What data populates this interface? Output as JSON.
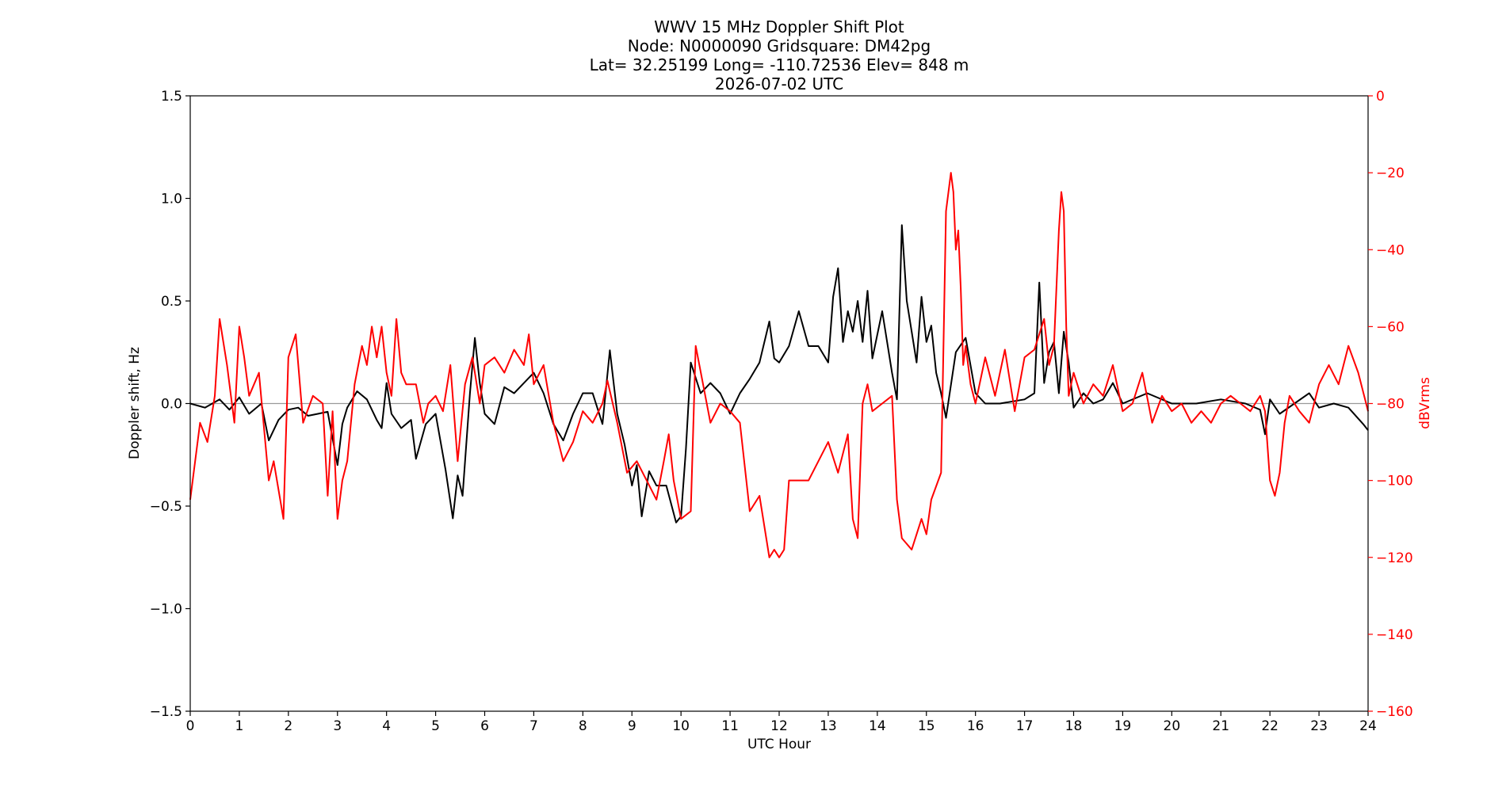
{
  "chart_data": {
    "type": "line",
    "title_lines": [
      "WWV 15 MHz Doppler Shift Plot",
      "Node:  N0000090     Gridsquare:  DM42pg",
      "Lat= 32.25199    Long= -110.72536    Elev= 848 m",
      "2026-07-02  UTC"
    ],
    "xlabel": "UTC Hour",
    "ylabel_left": "Doppler shift, Hz",
    "ylabel_right": "dBVrms",
    "xlim": [
      0,
      24
    ],
    "ylim_left": [
      -1.5,
      1.5
    ],
    "ylim_right": [
      -160,
      0
    ],
    "x_ticks": [
      "0",
      "1",
      "2",
      "3",
      "4",
      "5",
      "6",
      "7",
      "8",
      "9",
      "10",
      "11",
      "12",
      "13",
      "14",
      "15",
      "16",
      "17",
      "18",
      "19",
      "20",
      "21",
      "22",
      "23",
      "24"
    ],
    "y_ticks_left": [
      "−1.5",
      "−1.0",
      "−0.5",
      "0.0",
      "0.5",
      "1.0",
      "1.5"
    ],
    "y_ticks_left_values": [
      -1.5,
      -1.0,
      -0.5,
      0.0,
      0.5,
      1.0,
      1.5
    ],
    "y_ticks_right": [
      "−160",
      "−140",
      "−120",
      "−100",
      "−80",
      "−60",
      "−40",
      "−20",
      "0"
    ],
    "y_ticks_right_values": [
      -160,
      -140,
      -120,
      -100,
      -80,
      -60,
      -40,
      -20,
      0
    ],
    "colors": {
      "doppler": "#000000",
      "power": "#ff0000",
      "zero_line": "#999999",
      "right_axis": "#ff0000"
    },
    "zero_line_y": 0.0,
    "series": [
      {
        "axis": "left",
        "x": [
          0,
          0.3,
          0.6,
          0.8,
          1.0,
          1.2,
          1.45,
          1.6,
          1.8,
          2.0,
          2.2,
          2.4,
          2.6,
          2.8,
          3.0,
          3.1,
          3.2,
          3.4,
          3.6,
          3.8,
          3.9,
          4.0,
          4.1,
          4.3,
          4.5,
          4.6,
          4.8,
          5.0,
          5.2,
          5.35,
          5.45,
          5.55,
          5.7,
          5.8,
          5.9,
          6.0,
          6.2,
          6.4,
          6.6,
          6.8,
          7.0,
          7.2,
          7.4,
          7.6,
          7.8,
          8.0,
          8.2,
          8.4,
          8.55,
          8.7,
          8.85,
          9.0,
          9.1,
          9.2,
          9.35,
          9.5,
          9.7,
          9.9,
          10.0,
          10.1,
          10.2,
          10.4,
          10.6,
          10.8,
          11.0,
          11.2,
          11.4,
          11.6,
          11.8,
          11.9,
          12.0,
          12.2,
          12.4,
          12.6,
          12.8,
          13.0,
          13.1,
          13.2,
          13.3,
          13.4,
          13.5,
          13.6,
          13.7,
          13.8,
          13.9,
          14.1,
          14.3,
          14.4,
          14.5,
          14.6,
          14.7,
          14.8,
          14.9,
          15.0,
          15.1,
          15.2,
          15.3,
          15.4,
          15.6,
          15.8,
          16.0,
          16.2,
          16.5,
          17.0,
          17.2,
          17.3,
          17.4,
          17.5,
          17.6,
          17.7,
          17.8,
          17.9,
          18.0,
          18.2,
          18.4,
          18.6,
          18.8,
          19.0,
          19.5,
          20.0,
          20.5,
          21.0,
          21.5,
          21.8,
          21.9,
          22.0,
          22.2,
          22.5,
          22.8,
          23.0,
          23.3,
          23.6,
          23.9,
          24.0
        ],
        "y": [
          0.0,
          -0.02,
          0.02,
          -0.03,
          0.03,
          -0.05,
          0.0,
          -0.18,
          -0.08,
          -0.03,
          -0.02,
          -0.06,
          -0.05,
          -0.04,
          -0.3,
          -0.1,
          -0.02,
          0.06,
          0.02,
          -0.08,
          -0.12,
          0.1,
          -0.05,
          -0.12,
          -0.08,
          -0.27,
          -0.1,
          -0.05,
          -0.32,
          -0.56,
          -0.35,
          -0.45,
          0.05,
          0.32,
          0.1,
          -0.05,
          -0.1,
          0.08,
          0.05,
          0.1,
          0.15,
          0.05,
          -0.1,
          -0.18,
          -0.05,
          0.05,
          0.05,
          -0.1,
          0.26,
          -0.05,
          -0.2,
          -0.4,
          -0.3,
          -0.55,
          -0.33,
          -0.4,
          -0.4,
          -0.58,
          -0.55,
          -0.22,
          0.2,
          0.05,
          0.1,
          0.05,
          -0.05,
          0.05,
          0.12,
          0.2,
          0.4,
          0.22,
          0.2,
          0.28,
          0.45,
          0.28,
          0.28,
          0.2,
          0.52,
          0.66,
          0.3,
          0.45,
          0.35,
          0.5,
          0.3,
          0.55,
          0.22,
          0.45,
          0.15,
          0.02,
          0.87,
          0.5,
          0.35,
          0.2,
          0.52,
          0.3,
          0.38,
          0.15,
          0.05,
          -0.07,
          0.25,
          0.32,
          0.05,
          0.0,
          0.0,
          0.02,
          0.05,
          0.59,
          0.1,
          0.25,
          0.3,
          0.05,
          0.35,
          0.2,
          -0.02,
          0.05,
          0.0,
          0.02,
          0.1,
          0.0,
          0.05,
          0.0,
          0.0,
          0.02,
          0.0,
          -0.03,
          -0.15,
          0.02,
          -0.05,
          0.0,
          0.05,
          -0.02,
          0.0,
          -0.02,
          -0.1,
          -0.13
        ]
      },
      {
        "axis": "right",
        "x": [
          0,
          0.2,
          0.35,
          0.5,
          0.6,
          0.75,
          0.9,
          1.0,
          1.1,
          1.2,
          1.4,
          1.6,
          1.7,
          1.9,
          2.0,
          2.15,
          2.3,
          2.5,
          2.7,
          2.8,
          2.9,
          3.0,
          3.1,
          3.2,
          3.35,
          3.5,
          3.6,
          3.7,
          3.8,
          3.9,
          4.0,
          4.1,
          4.2,
          4.3,
          4.4,
          4.6,
          4.75,
          4.85,
          5.0,
          5.15,
          5.3,
          5.45,
          5.6,
          5.75,
          5.9,
          6.0,
          6.2,
          6.4,
          6.6,
          6.8,
          6.9,
          7.0,
          7.2,
          7.4,
          7.6,
          7.8,
          8.0,
          8.2,
          8.4,
          8.5,
          8.7,
          8.9,
          9.1,
          9.3,
          9.5,
          9.65,
          9.75,
          9.85,
          10.0,
          10.2,
          10.3,
          10.45,
          10.6,
          10.8,
          11.0,
          11.2,
          11.4,
          11.6,
          11.8,
          11.9,
          12.0,
          12.1,
          12.2,
          12.4,
          12.6,
          12.8,
          13.0,
          13.2,
          13.4,
          13.5,
          13.6,
          13.7,
          13.8,
          13.9,
          14.1,
          14.3,
          14.4,
          14.5,
          14.7,
          14.9,
          15.0,
          15.1,
          15.3,
          15.4,
          15.5,
          15.55,
          15.6,
          15.65,
          15.7,
          15.75,
          15.8,
          15.9,
          16.0,
          16.2,
          16.4,
          16.6,
          16.8,
          17.0,
          17.2,
          17.4,
          17.5,
          17.6,
          17.7,
          17.75,
          17.8,
          17.85,
          17.9,
          18.0,
          18.2,
          18.4,
          18.6,
          18.8,
          19.0,
          19.2,
          19.4,
          19.6,
          19.8,
          20.0,
          20.2,
          20.4,
          20.6,
          20.8,
          21.0,
          21.2,
          21.4,
          21.6,
          21.8,
          21.9,
          22.0,
          22.1,
          22.2,
          22.3,
          22.4,
          22.6,
          22.8,
          23.0,
          23.2,
          23.4,
          23.6,
          23.8,
          24.0
        ],
        "y": [
          -105,
          -85,
          -90,
          -78,
          -58,
          -70,
          -85,
          -60,
          -68,
          -78,
          -72,
          -100,
          -95,
          -110,
          -68,
          -62,
          -85,
          -78,
          -80,
          -104,
          -82,
          -110,
          -100,
          -95,
          -75,
          -65,
          -70,
          -60,
          -68,
          -60,
          -72,
          -78,
          -58,
          -72,
          -75,
          -75,
          -85,
          -80,
          -78,
          -82,
          -70,
          -95,
          -75,
          -68,
          -80,
          -70,
          -68,
          -72,
          -66,
          -70,
          -62,
          -75,
          -70,
          -85,
          -95,
          -90,
          -82,
          -85,
          -80,
          -74,
          -85,
          -98,
          -95,
          -100,
          -105,
          -95,
          -88,
          -100,
          -110,
          -108,
          -65,
          -75,
          -85,
          -80,
          -82,
          -85,
          -108,
          -104,
          -120,
          -118,
          -120,
          -118,
          -100,
          -100,
          -100,
          -95,
          -90,
          -98,
          -88,
          -110,
          -115,
          -80,
          -75,
          -82,
          -80,
          -78,
          -105,
          -115,
          -118,
          -110,
          -114,
          -105,
          -98,
          -30,
          -20,
          -25,
          -40,
          -35,
          -50,
          -70,
          -65,
          -75,
          -80,
          -68,
          -78,
          -66,
          -82,
          -68,
          -66,
          -58,
          -70,
          -65,
          -35,
          -25,
          -30,
          -60,
          -78,
          -72,
          -80,
          -75,
          -78,
          -70,
          -82,
          -80,
          -72,
          -85,
          -78,
          -82,
          -80,
          -85,
          -82,
          -85,
          -80,
          -78,
          -80,
          -82,
          -78,
          -82,
          -100,
          -104,
          -98,
          -85,
          -78,
          -82,
          -85,
          -75,
          -70,
          -75,
          -65,
          -72,
          -82
        ]
      }
    ]
  }
}
